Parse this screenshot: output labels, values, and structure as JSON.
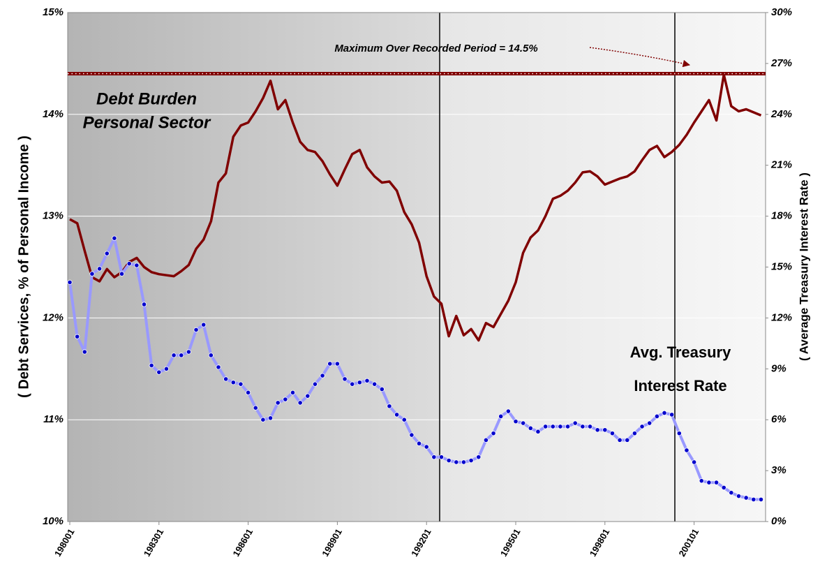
{
  "chart_data": {
    "type": "line",
    "categories": [
      "198001",
      null,
      null,
      null,
      null,
      null,
      null,
      null,
      null,
      null,
      null,
      null,
      "198301",
      null,
      null,
      null,
      null,
      null,
      null,
      null,
      null,
      null,
      null,
      null,
      "198601",
      null,
      null,
      null,
      null,
      null,
      null,
      null,
      null,
      null,
      null,
      null,
      "198901",
      null,
      null,
      null,
      null,
      null,
      null,
      null,
      null,
      null,
      null,
      null,
      "199201",
      null,
      null,
      null,
      null,
      null,
      null,
      null,
      null,
      null,
      null,
      null,
      "199501",
      null,
      null,
      null,
      null,
      null,
      null,
      null,
      null,
      null,
      null,
      null,
      "199801",
      null,
      null,
      null,
      null,
      null,
      null,
      null,
      null,
      null,
      null,
      null,
      "200101",
      null,
      null,
      null,
      null,
      null,
      null,
      null,
      null,
      null
    ],
    "series": [
      {
        "color": "#800000",
        "axis": "y",
        "values": [
          12.97,
          12.93,
          12.66,
          12.4,
          12.36,
          12.48,
          12.4,
          12.45,
          12.55,
          12.59,
          12.5,
          12.45,
          12.43,
          12.42,
          12.41,
          12.46,
          12.52,
          12.68,
          12.77,
          12.95,
          13.33,
          13.42,
          13.78,
          13.89,
          13.92,
          14.03,
          14.16,
          14.33,
          14.05,
          14.14,
          13.92,
          13.73,
          13.65,
          13.63,
          13.54,
          13.41,
          13.3,
          13.46,
          13.61,
          13.65,
          13.48,
          13.39,
          13.33,
          13.34,
          13.25,
          13.04,
          12.92,
          12.74,
          12.41,
          12.21,
          12.14,
          11.82,
          12.02,
          11.83,
          11.89,
          11.78,
          11.95,
          11.91,
          12.04,
          12.17,
          12.35,
          12.64,
          12.79,
          12.86,
          13.0,
          13.17,
          13.2,
          13.25,
          13.33,
          13.43,
          13.44,
          13.39,
          13.31,
          13.34,
          13.37,
          13.39,
          13.44,
          13.55,
          13.65,
          13.69,
          13.58,
          13.63,
          13.7,
          13.8,
          13.92,
          14.03,
          14.14,
          13.94,
          14.39,
          14.08,
          14.03,
          14.05,
          14.02,
          13.99
        ]
      },
      {
        "color": "#9999ff",
        "marker_color": "#0000cc",
        "axis": "y2",
        "values": [
          14.1,
          10.9,
          10.0,
          14.6,
          14.9,
          15.8,
          16.7,
          14.6,
          15.2,
          15.1,
          12.8,
          9.2,
          8.8,
          9.0,
          9.8,
          9.8,
          10.0,
          11.3,
          11.6,
          9.8,
          9.1,
          8.4,
          8.2,
          8.1,
          7.6,
          6.7,
          6.0,
          6.1,
          7.0,
          7.2,
          7.6,
          7.0,
          7.4,
          8.1,
          8.6,
          9.3,
          9.3,
          8.4,
          8.1,
          8.2,
          8.3,
          8.1,
          7.8,
          6.8,
          6.3,
          6.0,
          5.1,
          4.6,
          4.4,
          3.8,
          3.8,
          3.6,
          3.5,
          3.5,
          3.6,
          3.8,
          4.8,
          5.2,
          6.2,
          6.5,
          5.9,
          5.8,
          5.5,
          5.3,
          5.6,
          5.6,
          5.6,
          5.6,
          5.8,
          5.6,
          5.6,
          5.4,
          5.4,
          5.2,
          4.8,
          4.8,
          5.2,
          5.6,
          5.8,
          6.2,
          6.4,
          6.3,
          5.2,
          4.2,
          3.5,
          2.4,
          2.3,
          2.3,
          2.0,
          1.7,
          1.5,
          1.4,
          1.3,
          1.3
        ]
      }
    ],
    "ylim": [
      10,
      15
    ],
    "yticks": [
      {
        "value": 10,
        "label": "10%"
      },
      {
        "value": 11,
        "label": "11%"
      },
      {
        "value": 12,
        "label": "12%"
      },
      {
        "value": 13,
        "label": "13%"
      },
      {
        "value": 14,
        "label": "14%"
      },
      {
        "value": 15,
        "label": "15%"
      }
    ],
    "y2lim": [
      0,
      30
    ],
    "y2ticks": [
      {
        "value": 0,
        "label": "0%"
      },
      {
        "value": 3,
        "label": "3%"
      },
      {
        "value": 6,
        "label": "6%"
      },
      {
        "value": 9,
        "label": "9%"
      },
      {
        "value": 12,
        "label": "12%"
      },
      {
        "value": 15,
        "label": "15%"
      },
      {
        "value": 18,
        "label": "18%"
      },
      {
        "value": 21,
        "label": "21%"
      },
      {
        "value": 24,
        "label": "24%"
      },
      {
        "value": 27,
        "label": "27%"
      },
      {
        "value": 30,
        "label": "30%"
      }
    ],
    "ylabel": "( Debt Services, % of Personal Income )",
    "y2label": "( Average Treasury Interest Rate )",
    "max_line": {
      "value": 14.4,
      "label": "Maximum Over Recorded Period = 14.5%"
    },
    "annotations": [
      [
        "Debt Burden",
        "Personal Sector"
      ],
      [
        "Avg. Treasury",
        "Interest Rate"
      ]
    ],
    "grid": true
  }
}
